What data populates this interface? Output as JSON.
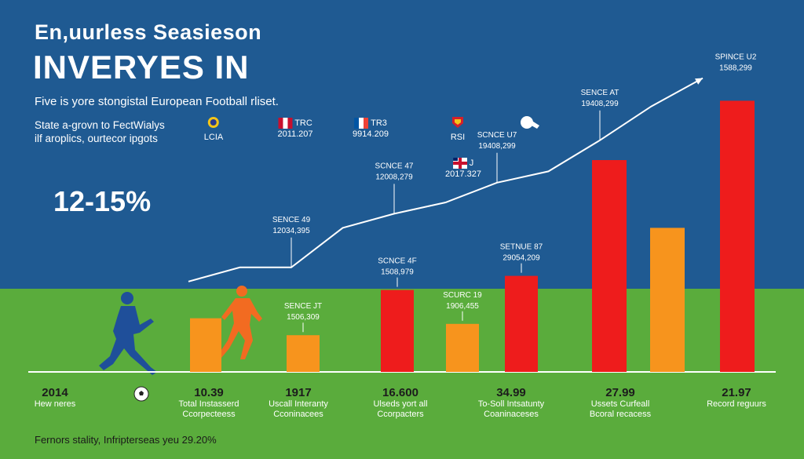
{
  "header": {
    "title_line1": "En,uurless Seasieson",
    "title_line2": "INVERYES IN",
    "subtitle": "Five is yore stongistal European Football rliset.",
    "description_line1": "State a-grovn to FectWialys",
    "description_line2": "ilf aroplics, ourtecor ipgots",
    "highlight_percent": "12-15%",
    "footnote": "Fernors stality, Infripterseas yeu 29.20%"
  },
  "flags": [
    {
      "caption_top": "",
      "caption_bottom": "LCIA",
      "icon": "club-crest-icon"
    },
    {
      "caption_top": "TRC",
      "caption_bottom": "2011.207",
      "icon": "flag-icon"
    },
    {
      "caption_top": "TR3",
      "caption_bottom": "9914.209",
      "icon": "flag-icon"
    },
    {
      "caption_top": "",
      "caption_bottom": "RSI",
      "icon": "club-crest-icon"
    },
    {
      "caption_top": "J",
      "caption_bottom": "2017.327",
      "icon": "union-flag-icon"
    }
  ],
  "bottom_labels": [
    {
      "value": "2014",
      "label_line1": "Hew neres",
      "label_line2": ""
    },
    {
      "value": "10.39",
      "label_line1": "Total Instasserd",
      "label_line2": "Ccorpecteess"
    },
    {
      "value": "1917",
      "label_line1": "Uscall Interanty",
      "label_line2": "Cconinacees"
    },
    {
      "value": "16.600",
      "label_line1": "Ulseds yort all",
      "label_line2": "Ccorpacters"
    },
    {
      "value": "34.99",
      "label_line1": "To-Soll Intsatunty",
      "label_line2": "Coaninaceses"
    },
    {
      "value": "27.99",
      "label_line1": "Ussets Curfeall",
      "label_line2": "Bcoral recacess"
    },
    {
      "value": "21.97",
      "label_line1": "Record reguurs",
      "label_line2": ""
    }
  ],
  "chart_data": {
    "type": "bar",
    "title": "INVERYES IN",
    "xlabel": "",
    "ylabel": "",
    "ylim": [
      0,
      100
    ],
    "bars": [
      {
        "value": 19,
        "color": "#f7941d",
        "label_top": "",
        "label_bottom": ""
      },
      {
        "value": 13,
        "color": "#f7941d",
        "label_top": "SENCE JT",
        "label_bottom": "1506,309"
      },
      {
        "value": 29,
        "color": "#ee1c1c",
        "label_top": "SCNCE 4F",
        "label_bottom": "1508,979"
      },
      {
        "value": 17,
        "color": "#f7941d",
        "label_top": "SCURC 19",
        "label_bottom": "1906,455"
      },
      {
        "value": 34,
        "color": "#ee1c1c",
        "label_top": "SETNUE 87",
        "label_bottom": "29054,209"
      },
      {
        "value": 75,
        "color": "#ee1c1c",
        "label_top": "",
        "label_bottom": ""
      },
      {
        "value": 51,
        "color": "#f7941d",
        "label_top": "",
        "label_bottom": ""
      },
      {
        "value": 96,
        "color": "#ee1c1c",
        "label_top": "",
        "label_bottom": ""
      }
    ],
    "trend": {
      "name": "trend",
      "color": "#ffffff",
      "values": [
        32,
        37,
        37,
        51,
        56,
        60,
        67,
        71,
        82,
        94,
        104
      ],
      "labels": [
        {
          "index": 2,
          "label_top": "SENCE 49",
          "label_bottom": "12034,395"
        },
        {
          "index": 4,
          "label_top": "SCNCE 47",
          "label_bottom": "12008,279"
        },
        {
          "index": 6,
          "label_top": "SCNCE U7",
          "label_bottom": "19408,299"
        },
        {
          "index": 8,
          "label_top": "SENCE AT",
          "label_bottom": "19408,299"
        },
        {
          "index": 10,
          "label_top": "SPINCE U2",
          "label_bottom": "1588,299"
        }
      ]
    }
  }
}
